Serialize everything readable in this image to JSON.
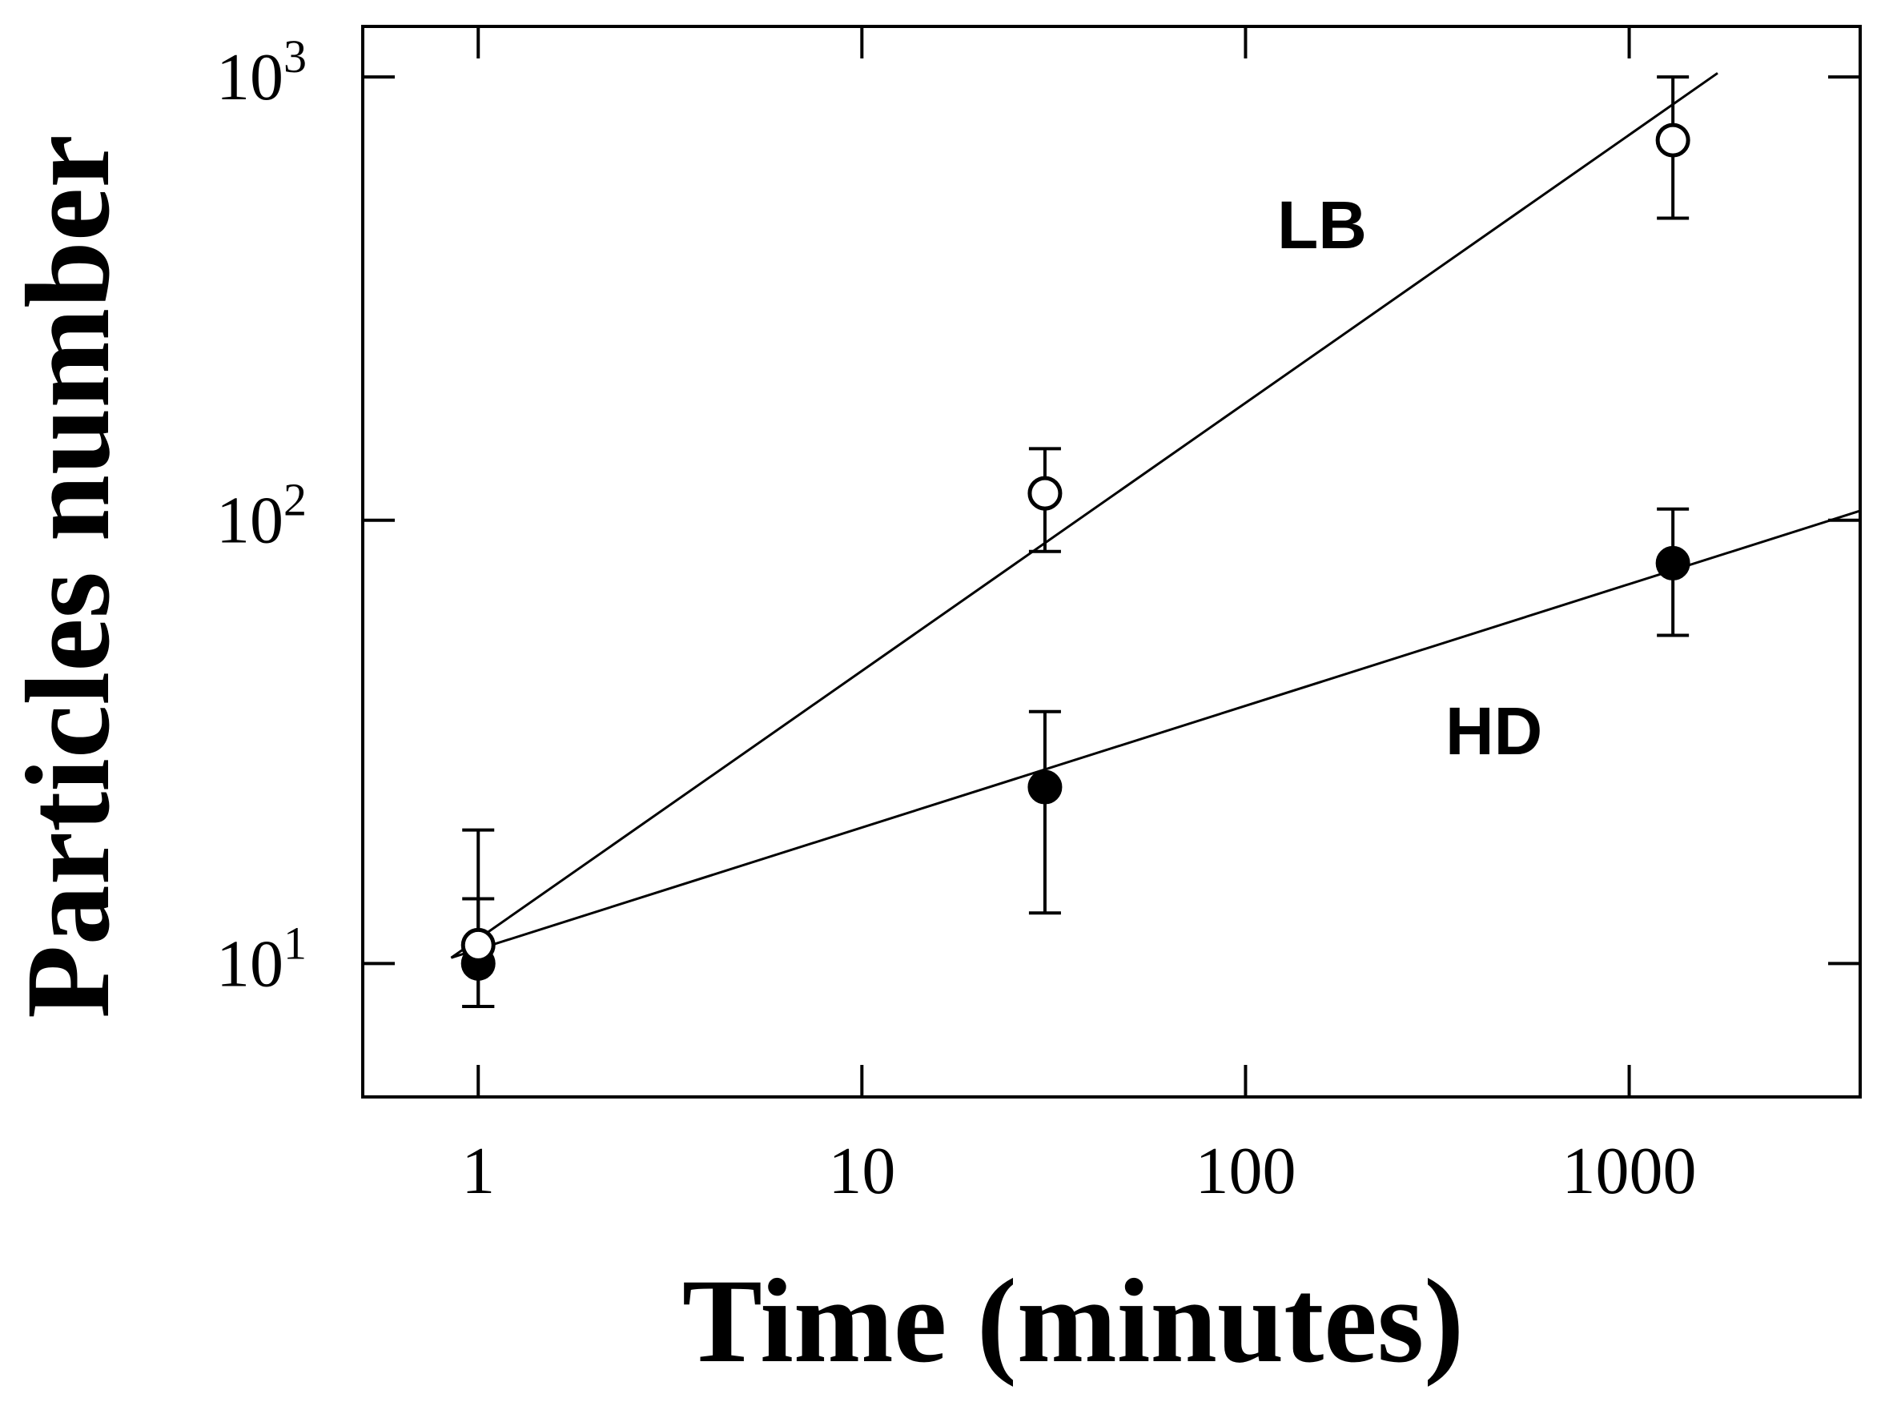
{
  "chart_data": {
    "type": "scatter",
    "xlabel": "Time (minutes)",
    "ylabel": "Particles number",
    "x_scale": "log",
    "y_scale": "log",
    "xlim": [
      0.5,
      4000
    ],
    "ylim": [
      5,
      1300
    ],
    "x_ticks": [
      {
        "value": 1,
        "label": "1"
      },
      {
        "value": 10,
        "label": "10"
      },
      {
        "value": 100,
        "label": "100"
      },
      {
        "value": 1000,
        "label": "1000"
      }
    ],
    "y_ticks": [
      {
        "value": 10,
        "base": "10",
        "exp": "1"
      },
      {
        "value": 100,
        "base": "10",
        "exp": "2"
      },
      {
        "value": 1000,
        "base": "10",
        "exp": "3"
      }
    ],
    "grid": false,
    "series": [
      {
        "name": "LB",
        "marker": "open-circle",
        "x": [
          1,
          30,
          1300
        ],
        "y": [
          11,
          115,
          720
        ],
        "y_err_low": [
          8,
          85,
          480
        ],
        "y_err_high": [
          14,
          145,
          1000
        ],
        "fit": {
          "x": [
            0.85,
            1700
          ],
          "y": [
            10.3,
            1020
          ]
        }
      },
      {
        "name": "HD",
        "marker": "filled-circle",
        "x": [
          1,
          30,
          1300
        ],
        "y": [
          10,
          25,
          80
        ],
        "y_err_low": [
          8,
          13,
          55
        ],
        "y_err_high": [
          20,
          37,
          106
        ],
        "fit": {
          "x": [
            0.85,
            4000
          ],
          "y": [
            10.3,
            105
          ]
        }
      }
    ]
  },
  "colors": {
    "line": "#000000",
    "background": "#ffffff",
    "tick_text": "#000000"
  }
}
